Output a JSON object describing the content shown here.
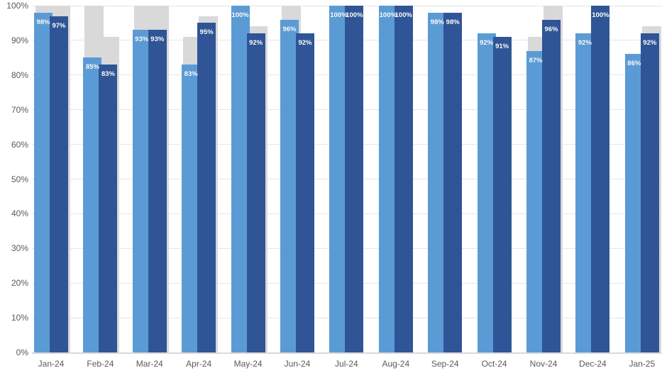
{
  "chart_data": {
    "type": "bar",
    "title": "",
    "xlabel": "",
    "ylabel": "",
    "ylim": [
      0,
      100
    ],
    "grid": true,
    "legend_position": "none",
    "categories": [
      "Jan-24",
      "Feb-24",
      "Mar-24",
      "Apr-24",
      "May-24",
      "Jun-24",
      "Jul-24",
      "Aug-24",
      "Sep-24",
      "Oct-24",
      "Nov-24",
      "Dec-24",
      "Jan-25"
    ],
    "yticks": [
      "0%",
      "10%",
      "20%",
      "30%",
      "40%",
      "50%",
      "60%",
      "70%",
      "80%",
      "90%",
      "100%"
    ],
    "series": [
      {
        "name": "light-blue-series",
        "color": "#5B9BD5",
        "values": [
          98,
          85,
          93,
          83,
          100,
          96,
          100,
          100,
          98,
          92,
          87,
          92,
          86
        ],
        "labels": [
          "98%",
          "85%",
          "93%",
          "83%",
          "100%",
          "96%",
          "100%",
          "100%",
          "98%",
          "92%",
          "87%",
          "92%",
          "86%"
        ]
      },
      {
        "name": "dark-blue-series",
        "color": "#2F5597",
        "values": [
          97,
          83,
          93,
          95,
          92,
          92,
          100,
          100,
          98,
          91,
          96,
          100,
          92
        ],
        "labels": [
          "97%",
          "83%",
          "93%",
          "95%",
          "92%",
          "92%",
          "100%",
          "100%",
          "98%",
          "91%",
          "96%",
          "100%",
          "92%"
        ]
      }
    ],
    "background_series": [
      {
        "name": "gray-cap-behind-light-blue",
        "color": "#D9D9D9",
        "values": [
          100,
          100,
          100,
          91,
          100,
          100,
          100,
          100,
          98,
          92,
          91,
          92,
          86
        ]
      },
      {
        "name": "gray-cap-behind-dark-blue",
        "color": "#D9D9D9",
        "values": [
          100,
          91,
          100,
          97,
          94,
          92,
          100,
          100,
          98,
          91,
          100,
          100,
          94
        ]
      }
    ],
    "colors": {
      "light_blue": "#5B9BD5",
      "dark_blue": "#2F5597",
      "gray": "#D9D9D9",
      "gridline": "#E6E6E6",
      "axis_text": "#595959",
      "data_label": "#FFFFFF",
      "background": "#FFFFFF"
    }
  }
}
